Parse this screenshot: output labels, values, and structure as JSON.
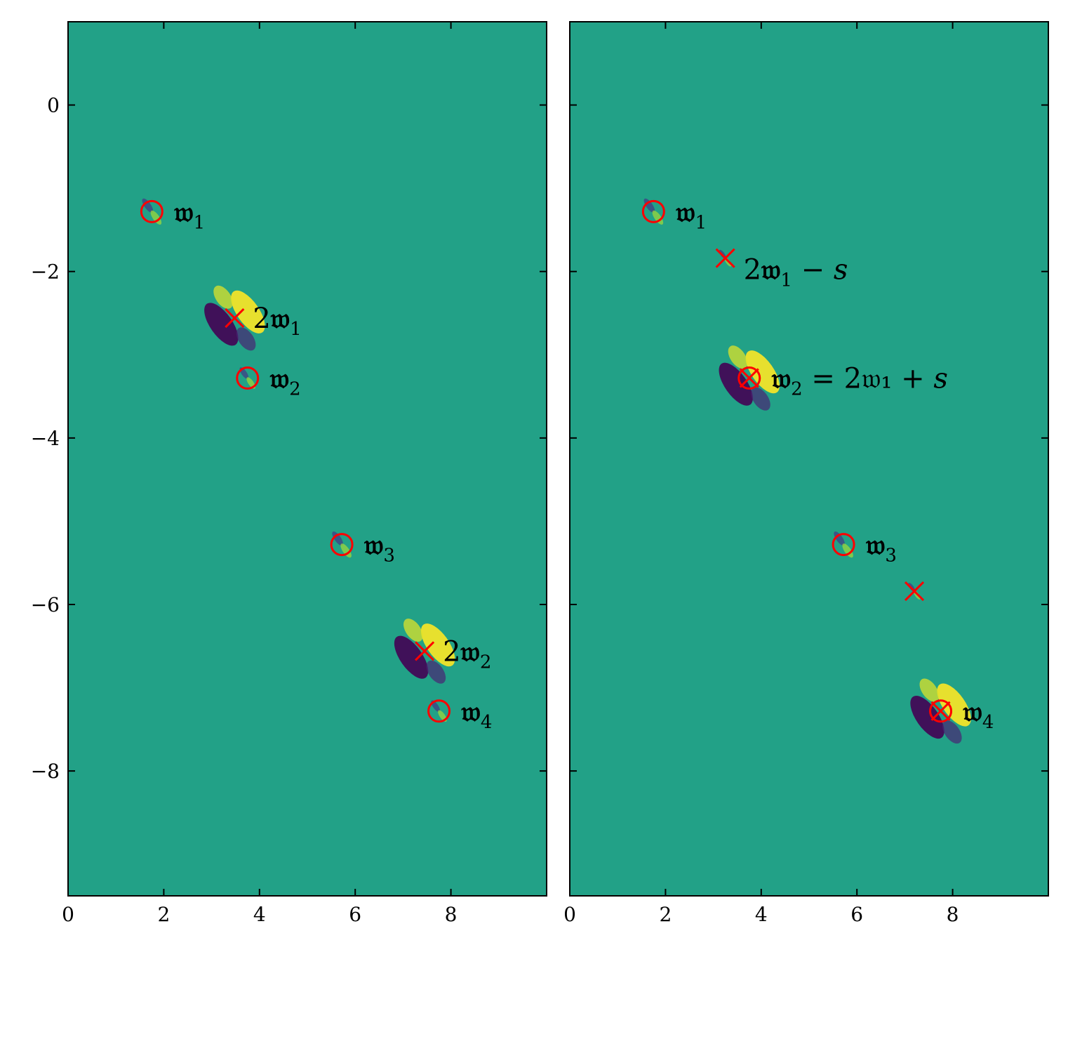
{
  "chart_data": [
    {
      "type": "heatmap",
      "panel": "left",
      "colormap": "viridis",
      "xlim": [
        0,
        10
      ],
      "ylim": [
        -9.5,
        1
      ],
      "x_ticks": [
        0,
        2,
        4,
        6,
        8
      ],
      "x_tick_labels": [
        "0",
        "2",
        "4",
        "6",
        "8"
      ],
      "y_ticks": [
        0,
        -2,
        -4,
        -6,
        -8
      ],
      "y_tick_labels": [
        "0",
        "−2",
        "−4",
        "−6",
        "−8"
      ],
      "grid": false,
      "field_features": [
        {
          "x": 1.75,
          "y": -1.28,
          "kind": "pole",
          "strength": 0.55
        },
        {
          "x": 3.48,
          "y": -2.56,
          "kind": "double-pole",
          "strength": 1.0
        },
        {
          "x": 3.75,
          "y": -3.28,
          "kind": "pole",
          "strength": 0.45
        },
        {
          "x": 5.72,
          "y": -5.28,
          "kind": "pole",
          "strength": 0.55
        },
        {
          "x": 7.45,
          "y": -6.56,
          "kind": "double-pole",
          "strength": 1.0
        },
        {
          "x": 7.75,
          "y": -7.28,
          "kind": "pole",
          "strength": 0.45
        }
      ],
      "circle_markers": [
        {
          "x": 1.75,
          "y": -1.28,
          "label": "𝔴",
          "sub": "1",
          "prefix": ""
        },
        {
          "x": 3.75,
          "y": -3.28,
          "label": "𝔴",
          "sub": "2",
          "prefix": ""
        },
        {
          "x": 5.72,
          "y": -5.28,
          "label": "𝔴",
          "sub": "3",
          "prefix": ""
        },
        {
          "x": 7.75,
          "y": -7.28,
          "label": "𝔴",
          "sub": "4",
          "prefix": ""
        }
      ],
      "cross_markers": [
        {
          "x": 3.48,
          "y": -2.56,
          "label": "2𝔴",
          "sub": "1",
          "suffix": ""
        },
        {
          "x": 7.45,
          "y": -6.56,
          "label": "2𝔴",
          "sub": "2",
          "suffix": ""
        }
      ],
      "marker_color": "#ff0000"
    },
    {
      "type": "heatmap",
      "panel": "right",
      "colormap": "viridis",
      "xlim": [
        0,
        10
      ],
      "ylim": [
        -9.5,
        1
      ],
      "x_ticks": [
        0,
        2,
        4,
        6,
        8
      ],
      "x_tick_labels": [
        "0",
        "2",
        "4",
        "6",
        "8"
      ],
      "y_ticks": [
        0,
        -2,
        -4,
        -6,
        -8
      ],
      "y_tick_labels": [],
      "grid": false,
      "field_features": [
        {
          "x": 1.75,
          "y": -1.28,
          "kind": "pole",
          "strength": 0.55
        },
        {
          "x": 3.25,
          "y": -1.84,
          "kind": "pole",
          "strength": 0.35
        },
        {
          "x": 3.75,
          "y": -3.28,
          "kind": "double-pole",
          "strength": 1.0
        },
        {
          "x": 5.72,
          "y": -5.28,
          "kind": "pole",
          "strength": 0.55
        },
        {
          "x": 7.2,
          "y": -5.84,
          "kind": "pole",
          "strength": 0.35
        },
        {
          "x": 7.75,
          "y": -7.28,
          "kind": "double-pole",
          "strength": 1.0
        }
      ],
      "circle_markers": [
        {
          "x": 1.75,
          "y": -1.28,
          "label": "𝔴",
          "sub": "1"
        },
        {
          "x": 3.75,
          "y": -3.28,
          "label": "𝔴",
          "sub": "2",
          "suffix": " = 2𝔴₁ + s"
        },
        {
          "x": 5.72,
          "y": -5.28,
          "label": "𝔴",
          "sub": "3"
        },
        {
          "x": 7.75,
          "y": -7.28,
          "label": "𝔴",
          "sub": "4"
        }
      ],
      "cross_markers": [
        {
          "x": 3.25,
          "y": -1.84,
          "label": "2𝔴",
          "sub": "1",
          "suffix": " − s"
        },
        {
          "x": 3.75,
          "y": -3.28,
          "label": "",
          "sub": ""
        },
        {
          "x": 7.2,
          "y": -5.84,
          "label": "",
          "sub": ""
        },
        {
          "x": 7.75,
          "y": -7.28,
          "label": "",
          "sub": ""
        }
      ],
      "marker_color": "#ff0000"
    }
  ]
}
